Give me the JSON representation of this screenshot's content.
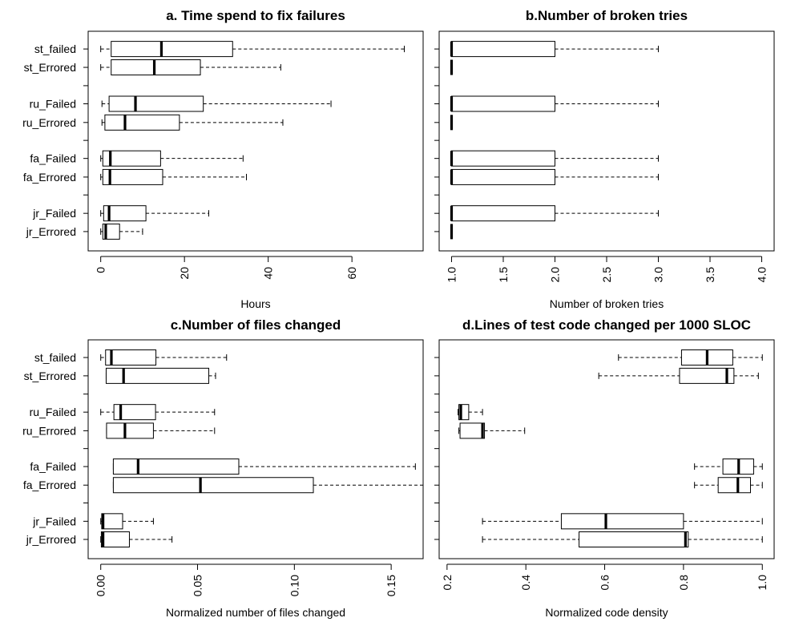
{
  "chart_data": [
    {
      "type": "boxplot",
      "title": "a. Time spend to fix failures",
      "xlabel": "Hours",
      "xlim": [
        -3,
        77
      ],
      "ticks": [
        0,
        20,
        40,
        60
      ],
      "tick_labels": [
        "0",
        "20",
        "40",
        "60"
      ],
      "categories": [
        "st_failed",
        "st_Errored",
        "ru_Failed",
        "ru_Errored",
        "fa_Failed",
        "fa_Errored",
        "jr_Failed",
        "jr_Errored"
      ],
      "boxes": [
        {
          "whisker_low": 0,
          "q1": 2.5,
          "median": 14.5,
          "q3": 31.5,
          "whisker_high": 72.5
        },
        {
          "whisker_low": 0,
          "q1": 2.5,
          "median": 12.8,
          "q3": 23.8,
          "whisker_high": 43
        },
        {
          "whisker_low": 0.3,
          "q1": 2,
          "median": 8.3,
          "q3": 24.5,
          "whisker_high": 55
        },
        {
          "whisker_low": 0.3,
          "q1": 1,
          "median": 5.8,
          "q3": 18.8,
          "whisker_high": 43.5
        },
        {
          "whisker_low": 0,
          "q1": 0.5,
          "median": 2.3,
          "q3": 14.3,
          "whisker_high": 34
        },
        {
          "whisker_low": 0,
          "q1": 0.5,
          "median": 2.2,
          "q3": 14.8,
          "whisker_high": 34.8
        },
        {
          "whisker_low": 0,
          "q1": 0.7,
          "median": 2,
          "q3": 10.8,
          "whisker_high": 25.8
        },
        {
          "whisker_low": 0,
          "q1": 0.5,
          "median": 1.2,
          "q3": 4.5,
          "whisker_high": 10
        }
      ]
    },
    {
      "type": "boxplot",
      "title": "b.Number of broken tries",
      "xlabel": "Number of broken tries",
      "xlim": [
        0.88,
        4.12
      ],
      "ticks": [
        1.0,
        1.5,
        2.0,
        2.5,
        3.0,
        3.5,
        4.0
      ],
      "tick_labels": [
        "1.0",
        "1.5",
        "2.0",
        "2.5",
        "3.0",
        "3.5",
        "4.0"
      ],
      "categories": [
        "st_failed",
        "st_Errored",
        "ru_Failed",
        "ru_Errored",
        "fa_Failed",
        "fa_Errored",
        "jr_Failed",
        "jr_Errored"
      ],
      "boxes": [
        {
          "whisker_low": 1,
          "q1": 1,
          "median": 1,
          "q3": 2,
          "whisker_high": 3
        },
        {
          "whisker_low": 1,
          "q1": 1,
          "median": 1,
          "q3": 1,
          "whisker_high": 1
        },
        {
          "whisker_low": 1,
          "q1": 1,
          "median": 1,
          "q3": 2,
          "whisker_high": 3
        },
        {
          "whisker_low": 1,
          "q1": 1,
          "median": 1,
          "q3": 1,
          "whisker_high": 1
        },
        {
          "whisker_low": 1,
          "q1": 1,
          "median": 1,
          "q3": 2,
          "whisker_high": 3
        },
        {
          "whisker_low": 1,
          "q1": 1,
          "median": 1,
          "q3": 2,
          "whisker_high": 3
        },
        {
          "whisker_low": 1,
          "q1": 1,
          "median": 1,
          "q3": 2,
          "whisker_high": 3
        },
        {
          "whisker_low": 1,
          "q1": 1,
          "median": 1,
          "q3": 1,
          "whisker_high": 1
        }
      ]
    },
    {
      "type": "boxplot",
      "title": "c.Number of files changed",
      "xlabel": "Normalized number of files changed",
      "xlim": [
        -0.0065,
        0.1665
      ],
      "ticks": [
        0.0,
        0.05,
        0.1,
        0.15
      ],
      "tick_labels": [
        "0.00",
        "0.05",
        "0.10",
        "0.15"
      ],
      "categories": [
        "st_failed",
        "st_Errored",
        "ru_Failed",
        "ru_Errored",
        "fa_Failed",
        "fa_Errored",
        "jr_Failed",
        "jr_Errored"
      ],
      "boxes": [
        {
          "whisker_low": 0,
          "q1": 0.0025,
          "median": 0.0055,
          "q3": 0.0285,
          "whisker_high": 0.065
        },
        {
          "whisker_low": 0.0028,
          "q1": 0.0028,
          "median": 0.0118,
          "q3": 0.0558,
          "whisker_high": 0.0593
        },
        {
          "whisker_low": 0,
          "q1": 0.0068,
          "median": 0.0103,
          "q3": 0.0283,
          "whisker_high": 0.0588
        },
        {
          "whisker_low": 0.003,
          "q1": 0.003,
          "median": 0.0125,
          "q3": 0.0272,
          "whisker_high": 0.0588
        },
        {
          "whisker_low": 0.0065,
          "q1": 0.0065,
          "median": 0.0193,
          "q3": 0.0713,
          "whisker_high": 0.1625
        },
        {
          "whisker_low": 0.0065,
          "q1": 0.0065,
          "median": 0.0515,
          "q3": 0.1098,
          "whisker_high": 0.1665
        },
        {
          "whisker_low": 0,
          "q1": 0.0005,
          "median": 0.0012,
          "q3": 0.0113,
          "whisker_high": 0.0272
        },
        {
          "whisker_low": 0,
          "q1": 0.0003,
          "median": 0.0012,
          "q3": 0.0148,
          "whisker_high": 0.0368
        }
      ]
    },
    {
      "type": "boxplot",
      "title": "d.Lines of test code changed per 1000 SLOC",
      "xlabel": "Normalized code density",
      "xlim": [
        0.18,
        1.03
      ],
      "ticks": [
        0.2,
        0.4,
        0.6,
        0.8,
        1.0
      ],
      "tick_labels": [
        "0.2",
        "0.4",
        "0.6",
        "0.8",
        "1.0"
      ],
      "categories": [
        "st_failed",
        "st_Errored",
        "ru_Failed",
        "ru_Errored",
        "fa_Failed",
        "fa_Errored",
        "jr_Failed",
        "jr_Errored"
      ],
      "boxes": [
        {
          "whisker_low": 0.635,
          "q1": 0.795,
          "median": 0.86,
          "q3": 0.925,
          "whisker_high": 1.0
        },
        {
          "whisker_low": 0.585,
          "q1": 0.79,
          "median": 0.91,
          "q3": 0.928,
          "whisker_high": 0.99
        },
        {
          "whisker_low": 0.228,
          "q1": 0.23,
          "median": 0.235,
          "q3": 0.255,
          "whisker_high": 0.29
        },
        {
          "whisker_low": 0.23,
          "q1": 0.233,
          "median": 0.29,
          "q3": 0.295,
          "whisker_high": 0.397
        },
        {
          "whisker_low": 0.828,
          "q1": 0.9,
          "median": 0.94,
          "q3": 0.978,
          "whisker_high": 1.0
        },
        {
          "whisker_low": 0.828,
          "q1": 0.888,
          "median": 0.938,
          "q3": 0.97,
          "whisker_high": 1.0
        },
        {
          "whisker_low": 0.29,
          "q1": 0.49,
          "median": 0.603,
          "q3": 0.8,
          "whisker_high": 1.0
        },
        {
          "whisker_low": 0.29,
          "q1": 0.535,
          "median": 0.805,
          "q3": 0.812,
          "whisker_high": 1.0
        }
      ]
    }
  ]
}
